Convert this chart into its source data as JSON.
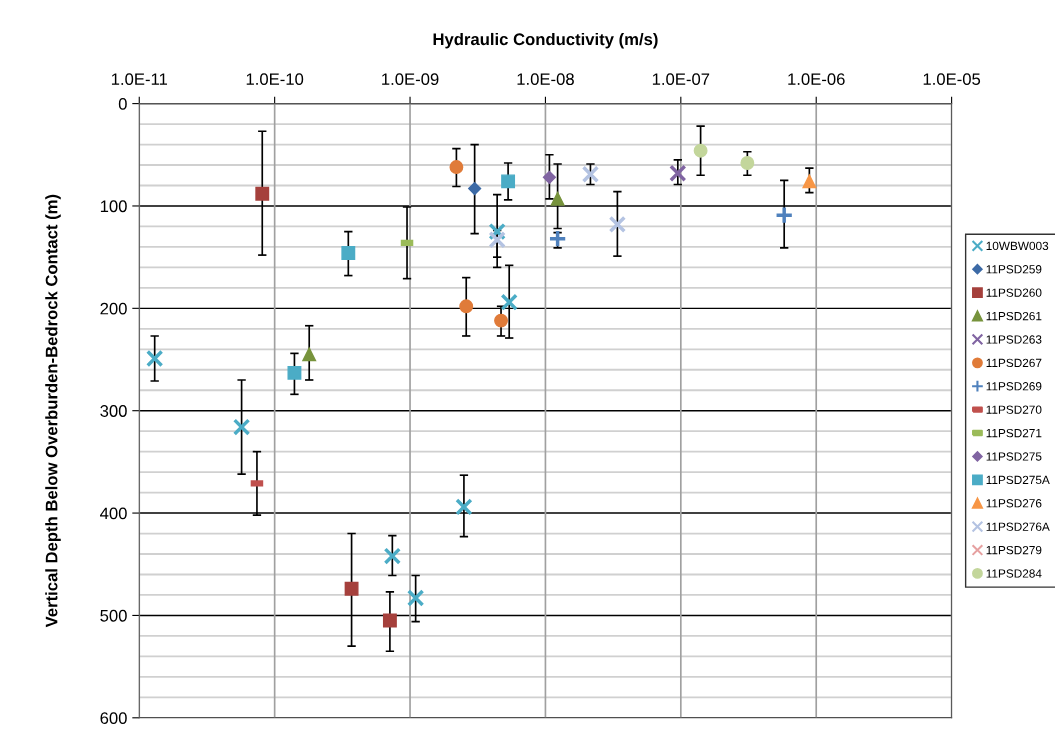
{
  "chart_data": {
    "type": "scatter",
    "xlabel": "Hydraulic Conductivity (m/s)",
    "ylabel": "Vertical Depth Below Overburden-Bedrock Contact (m)",
    "log": "x",
    "grid": true,
    "legend": "right",
    "xlim": [
      1e-11,
      1e-05
    ],
    "xticks": [
      {
        "value": 1e-11,
        "label": "1.0E-11"
      },
      {
        "value": 1e-10,
        "label": "1.0E-10"
      },
      {
        "value": 1e-09,
        "label": "1.0E-09"
      },
      {
        "value": 1e-08,
        "label": "1.0E-08"
      },
      {
        "value": 1e-07,
        "label": "1.0E-07"
      },
      {
        "value": 1e-06,
        "label": "1.0E-06"
      },
      {
        "value": 1e-05,
        "label": "1.0E-05"
      }
    ],
    "ylim": [
      600,
      0
    ],
    "yticks": [
      0,
      {
        "value": 20,
        "label": null
      },
      {
        "value": 40,
        "label": null
      },
      {
        "value": 60,
        "label": null
      },
      {
        "value": 80,
        "label": null
      },
      100,
      {
        "value": 120,
        "label": null
      },
      {
        "value": 140,
        "label": null
      },
      {
        "value": 160,
        "label": null
      },
      {
        "value": 180,
        "label": null
      },
      200,
      {
        "value": 220,
        "label": null
      },
      {
        "value": 240,
        "label": null
      },
      {
        "value": 260,
        "label": null
      },
      {
        "value": 280,
        "label": null
      },
      300,
      {
        "value": 320,
        "label": null
      },
      {
        "value": 340,
        "label": null
      },
      {
        "value": 360,
        "label": null
      },
      {
        "value": 380,
        "label": null
      },
      400,
      {
        "value": 420,
        "label": null
      },
      {
        "value": 440,
        "label": null
      },
      {
        "value": 460,
        "label": null
      },
      {
        "value": 480,
        "label": null
      },
      500,
      {
        "value": 520,
        "label": null
      },
      {
        "value": 540,
        "label": null
      },
      {
        "value": 560,
        "label": null
      },
      {
        "value": 580,
        "label": null
      },
      600
    ],
    "series": [
      {
        "name": "10WBW003",
        "color": "#4bacc6",
        "marker": "cross",
        "x": [
          1.3e-11,
          5.7e-11,
          2.5e-09,
          7.4e-10,
          1.1e-09,
          4.4e-09,
          5.4e-09
        ],
        "values": [
          249,
          316,
          394,
          442,
          483,
          125,
          194
        ],
        "errors": [
          [
            227,
            271
          ],
          [
            270,
            362
          ],
          [
            363,
            423
          ],
          [
            422,
            461
          ],
          [
            461,
            506
          ],
          [
            89,
            150
          ],
          [
            158,
            229
          ]
        ]
      },
      {
        "name": "11PSD259",
        "color": "#3c6aa6",
        "marker": "diamond",
        "x": [
          3e-09
        ],
        "values": [
          83
        ],
        "errors": [
          [
            40,
            127
          ]
        ]
      },
      {
        "name": "11PSD260",
        "color": "#a5403c",
        "marker": "square",
        "x": [
          8.1e-11,
          3.7e-10,
          7.1e-10
        ],
        "values": [
          88,
          474,
          505
        ],
        "errors": [
          [
            27,
            148
          ],
          [
            420,
            530
          ],
          [
            477,
            535
          ]
        ]
      },
      {
        "name": "11PSD261",
        "color": "#77933c",
        "marker": "triangle",
        "x": [
          1.8e-10,
          1.23e-08
        ],
        "values": [
          245,
          93
        ],
        "errors": [
          [
            217,
            270
          ],
          [
            59,
            122
          ]
        ]
      },
      {
        "name": "11PSD263",
        "color": "#8064a2",
        "marker": "cross",
        "x": [
          9.5e-08
        ],
        "values": [
          68
        ],
        "errors": [
          [
            55,
            79
          ]
        ]
      },
      {
        "name": "11PSD267",
        "color": "#e07b39",
        "marker": "circle",
        "x": [
          2.2e-09,
          2.6e-09,
          4.7e-09
        ],
        "values": [
          62,
          198,
          212
        ],
        "errors": [
          [
            44,
            81
          ],
          [
            170,
            227
          ],
          [
            198,
            227
          ]
        ]
      },
      {
        "name": "11PSD269",
        "color": "#4f81bd",
        "marker": "plus",
        "x": [
          1.23e-08,
          5.8e-07
        ],
        "values": [
          132,
          109
        ],
        "errors": [
          [
            126,
            141
          ],
          [
            75,
            141
          ]
        ]
      },
      {
        "name": "11PSD270",
        "color": "#c0504d",
        "x": [
          7.4e-11
        ],
        "values": [
          371
        ],
        "errors": [
          [
            340,
            402
          ]
        ]
      },
      {
        "name": "11PSD271",
        "color": "#9bbb59",
        "x": [
          9.5e-10
        ],
        "values": [
          136
        ],
        "errors": [
          [
            101,
            171
          ]
        ]
      },
      {
        "name": "11PSD275",
        "color": "#8064a2",
        "marker": "diamond",
        "x": [
          1.07e-08
        ],
        "values": [
          72
        ],
        "errors": [
          [
            50,
            93
          ]
        ]
      },
      {
        "name": "11PSD275A",
        "color": "#4bacc6",
        "marker": "square",
        "x": [
          3.5e-10,
          1.4e-10,
          5.3e-09
        ],
        "values": [
          146,
          263,
          76
        ],
        "errors": [
          [
            125,
            168
          ],
          [
            244,
            284
          ],
          [
            58,
            94
          ]
        ]
      },
      {
        "name": "11PSD276",
        "color": "#f79646",
        "marker": "triangle",
        "x": [
          8.9e-07
        ],
        "values": [
          76
        ],
        "errors": [
          [
            63,
            87
          ]
        ]
      },
      {
        "name": "11PSD276A",
        "color": "#b4c3e2",
        "marker": "cross",
        "x": [
          2.15e-08,
          3.4e-08,
          4.4e-09
        ],
        "values": [
          69,
          118,
          133
        ],
        "errors": [
          [
            59,
            79
          ],
          [
            86,
            149
          ],
          [
            124,
            160
          ]
        ]
      },
      {
        "name": "11PSD279",
        "color": "#e6a0a0",
        "marker": "cross"
      },
      {
        "name": "11PSD284",
        "color": "#c3d69b",
        "marker": "circle",
        "x": [
          1.4e-07,
          3.1e-07
        ],
        "values": [
          46,
          58
        ],
        "errors": [
          [
            22,
            70
          ],
          [
            47,
            70
          ]
        ]
      }
    ]
  }
}
